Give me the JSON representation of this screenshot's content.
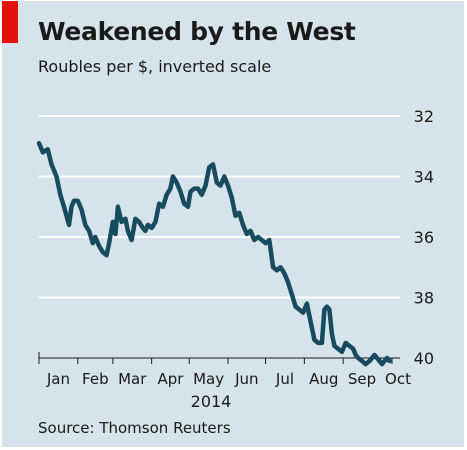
{
  "header": {
    "title": "Weakened by the West",
    "subtitle": "Roubles per $, inverted scale"
  },
  "footer": {
    "source": "Source: Thomson Reuters"
  },
  "colors": {
    "background": "#d6e3ea",
    "accent": "#e3120b",
    "line": "#174c60",
    "grid": "#ffffff"
  },
  "chart_data": {
    "type": "line",
    "title": "Weakened by the West",
    "subtitle": "Roubles per $, inverted scale",
    "xlabel": "2014",
    "ylabel": "",
    "y_inverted": true,
    "ylim": [
      32,
      40
    ],
    "yticks": [
      32,
      34,
      36,
      38,
      40
    ],
    "y_axis_position": "right",
    "grid": true,
    "xlim": [
      "2014-01-01",
      "2014-10-10"
    ],
    "month_labels": [
      "Jan",
      "Feb",
      "Mar",
      "Apr",
      "May",
      "Jun",
      "Jul",
      "Aug",
      "Sep",
      "Oct"
    ],
    "year_label": "2014",
    "series": [
      {
        "x": [
          "2014-01-01",
          "2014-01-04",
          "2014-01-08",
          "2014-01-11",
          "2014-01-15",
          "2014-01-18",
          "2014-01-21",
          "2014-01-23",
          "2014-01-25",
          "2014-01-27",
          "2014-01-29",
          "2014-02-01",
          "2014-02-04",
          "2014-02-07",
          "2014-02-10",
          "2014-02-13",
          "2014-02-15",
          "2014-02-18",
          "2014-02-21",
          "2014-02-24",
          "2014-02-26",
          "2014-03-01",
          "2014-03-03",
          "2014-03-05",
          "2014-03-08",
          "2014-03-11",
          "2014-03-13",
          "2014-03-16",
          "2014-03-19",
          "2014-03-22",
          "2014-03-25",
          "2014-03-27",
          "2014-03-29",
          "2014-04-01",
          "2014-04-04",
          "2014-04-07",
          "2014-04-10",
          "2014-04-13",
          "2014-04-16",
          "2014-04-18",
          "2014-04-21",
          "2014-04-24",
          "2014-04-27",
          "2014-04-30",
          "2014-05-02",
          "2014-05-05",
          "2014-05-08",
          "2014-05-11",
          "2014-05-14",
          "2014-05-17",
          "2014-05-20",
          "2014-05-23",
          "2014-05-26",
          "2014-05-29",
          "2014-06-01",
          "2014-06-04",
          "2014-06-07",
          "2014-06-10",
          "2014-06-13",
          "2014-06-16",
          "2014-06-19",
          "2014-06-22",
          "2014-06-25",
          "2014-06-28",
          "2014-07-01",
          "2014-07-04",
          "2014-07-07",
          "2014-07-10",
          "2014-07-13",
          "2014-07-16",
          "2014-07-19",
          "2014-07-22",
          "2014-07-25",
          "2014-07-28",
          "2014-07-31",
          "2014-08-03",
          "2014-08-06",
          "2014-08-09",
          "2014-08-12",
          "2014-08-15",
          "2014-08-17",
          "2014-08-19",
          "2014-08-21",
          "2014-08-23",
          "2014-08-25",
          "2014-08-28",
          "2014-08-31",
          "2014-09-03",
          "2014-09-06",
          "2014-09-09",
          "2014-09-11",
          "2014-09-13",
          "2014-09-16",
          "2014-09-19",
          "2014-09-22",
          "2014-09-24",
          "2014-09-26",
          "2014-09-28",
          "2014-09-30",
          "2014-10-02",
          "2014-10-04",
          "2014-10-06",
          "2014-10-08"
        ],
        "y": [
          32.9,
          33.2,
          33.1,
          33.6,
          34.0,
          34.6,
          35.0,
          35.3,
          35.6,
          35.0,
          34.8,
          34.8,
          35.1,
          35.6,
          35.8,
          36.2,
          36.0,
          36.3,
          36.5,
          36.6,
          36.2,
          35.5,
          35.9,
          35.0,
          35.5,
          35.4,
          35.8,
          36.1,
          35.4,
          35.5,
          35.7,
          35.8,
          35.6,
          35.7,
          35.5,
          34.9,
          35.0,
          34.6,
          34.4,
          34.0,
          34.2,
          34.5,
          34.9,
          35.0,
          34.5,
          34.4,
          34.4,
          34.6,
          34.3,
          33.7,
          33.6,
          34.2,
          34.3,
          34.0,
          34.3,
          34.7,
          35.3,
          35.2,
          35.6,
          35.9,
          35.8,
          36.1,
          36.0,
          36.1,
          36.2,
          36.1,
          37.0,
          37.1,
          37.0,
          37.2,
          37.5,
          37.9,
          38.3,
          38.4,
          38.5,
          38.2,
          38.8,
          39.4,
          39.5,
          39.5,
          38.4,
          38.3,
          38.4,
          39.2,
          39.6,
          39.7,
          39.8,
          39.5,
          39.6,
          39.7,
          39.9,
          40.0,
          40.1,
          40.2,
          40.1,
          40.0,
          39.9,
          40.0,
          40.1,
          40.2,
          40.1,
          40.0,
          40.1
        ]
      }
    ]
  }
}
